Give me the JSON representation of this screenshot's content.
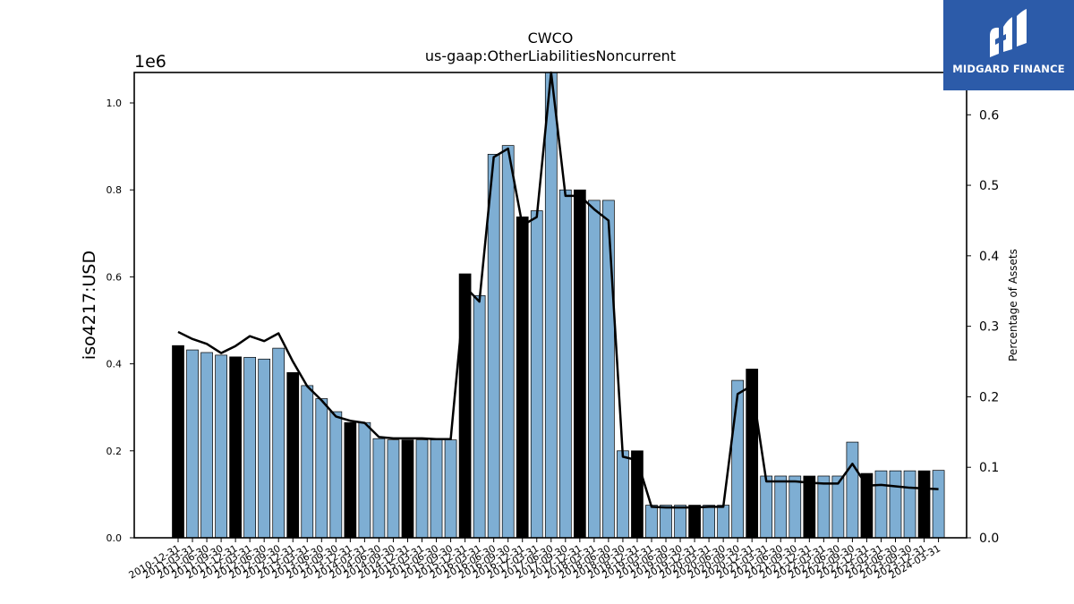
{
  "brand": {
    "name": "MIDGARD FINANCE",
    "color": "#2c5ba9",
    "icon": "midgard-logo-icon"
  },
  "chart_data": {
    "type": "bar",
    "title": "CWCO",
    "subtitle": "us-gaap:OtherLiabilitiesNoncurrent",
    "ylabel": "iso4217:USD",
    "ylabel_right": "Percentage of Assets",
    "y_scale_label": "1e6",
    "ylim": [
      0,
      1070000
    ],
    "y2lim": [
      0,
      0.66
    ],
    "yticks": [
      0.0,
      0.2,
      0.4,
      0.6,
      0.8,
      1.0
    ],
    "y2ticks": [
      0.0,
      0.1,
      0.2,
      0.3,
      0.4,
      0.5,
      0.6
    ],
    "colors": {
      "annual": "#000000",
      "quarter": "#7eaed3",
      "line": "#000000"
    },
    "categories": [
      "2010-12-31",
      "2011-03-31",
      "2011-06-30",
      "2011-09-30",
      "2011-12-31",
      "2012-03-31",
      "2012-06-30",
      "2012-09-30",
      "2012-12-31",
      "2013-03-31",
      "2013-06-30",
      "2013-09-30",
      "2013-12-31",
      "2014-03-31",
      "2014-06-30",
      "2014-09-30",
      "2014-12-31",
      "2015-03-31",
      "2015-06-30",
      "2015-09-30",
      "2015-12-31",
      "2016-03-31",
      "2016-06-30",
      "2016-09-30",
      "2016-12-31",
      "2017-03-31",
      "2017-06-30",
      "2017-09-30",
      "2017-12-31",
      "2018-03-31",
      "2018-06-30",
      "2018-09-30",
      "2018-12-31",
      "2019-03-31",
      "2019-06-30",
      "2019-09-30",
      "2019-12-31",
      "2020-03-31",
      "2020-06-30",
      "2020-09-30",
      "2020-12-31",
      "2021-03-31",
      "2021-06-30",
      "2021-09-30",
      "2021-12-31",
      "2022-03-31",
      "2022-06-30",
      "2022-09-30",
      "2022-12-31",
      "2023-03-31",
      "2023-06-30",
      "2023-09-30",
      "2023-12-31",
      "2024-03-31"
    ],
    "values": [
      442000,
      432000,
      426000,
      420000,
      416000,
      415000,
      411000,
      436000,
      380000,
      350000,
      320000,
      290000,
      265000,
      265000,
      228000,
      225000,
      225000,
      225000,
      225000,
      225000,
      607000,
      557000,
      882000,
      902000,
      738000,
      752000,
      1070000,
      800000,
      800000,
      776000,
      776000,
      200000,
      200000,
      75000,
      75000,
      75000,
      75000,
      75000,
      75000,
      362000,
      388000,
      142000,
      142000,
      142000,
      142000,
      142000,
      142000,
      220000,
      148000,
      154000,
      154000,
      154000,
      154000,
      155000
    ],
    "annual": [
      true,
      false,
      false,
      false,
      true,
      false,
      false,
      false,
      true,
      false,
      false,
      false,
      true,
      false,
      false,
      false,
      true,
      false,
      false,
      false,
      true,
      false,
      false,
      false,
      true,
      false,
      false,
      false,
      true,
      false,
      false,
      false,
      true,
      false,
      false,
      false,
      true,
      false,
      false,
      false,
      true,
      false,
      false,
      false,
      true,
      false,
      false,
      false,
      true,
      false,
      false,
      false,
      true,
      false
    ],
    "series": [
      {
        "values": [
          0.292,
          0.282,
          0.275,
          0.262,
          0.272,
          0.286,
          0.279,
          0.29,
          0.25,
          0.215,
          0.195,
          0.172,
          0.166,
          0.163,
          0.143,
          0.141,
          0.141,
          0.141,
          0.14,
          0.14,
          0.356,
          0.335,
          0.54,
          0.552,
          0.443,
          0.455,
          0.685,
          0.485,
          0.485,
          0.466,
          0.45,
          0.115,
          0.11,
          0.044,
          0.043,
          0.043,
          0.043,
          0.044,
          0.044,
          0.204,
          0.216,
          0.08,
          0.08,
          0.08,
          0.078,
          0.077,
          0.077,
          0.105,
          0.074,
          0.075,
          0.073,
          0.071,
          0.07,
          0.069
        ]
      }
    ],
    "grid": false,
    "legend": "none"
  }
}
